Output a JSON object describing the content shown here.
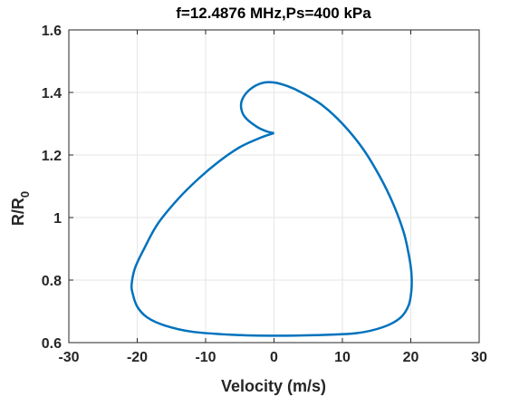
{
  "chart_data": {
    "type": "line",
    "title": "f=12.4876 MHz,Ps=400 kPa",
    "xlabel": "Velocity (m/s)",
    "ylabel_main": "R/R",
    "ylabel_sub": "0",
    "xlim": [
      -30,
      30
    ],
    "ylim": [
      0.6,
      1.6
    ],
    "xticks": [
      -30,
      -20,
      -10,
      0,
      10,
      20,
      30
    ],
    "yticks": [
      0.6,
      0.8,
      1,
      1.2,
      1.4,
      1.6
    ],
    "xtick_labels": [
      "-30",
      "-20",
      "-10",
      "0",
      "10",
      "20",
      "30"
    ],
    "ytick_labels": [
      "0.6",
      "0.8",
      "1",
      "1.2",
      "1.4",
      "1.6"
    ],
    "grid": true,
    "line_color": "#0072BD",
    "series": [
      {
        "x": [
          0,
          -2,
          -5,
          -8,
          -11,
          -14,
          -17,
          -19,
          -20.3,
          -20.8,
          -20.7,
          -20,
          -18.5,
          -16,
          -12,
          -6,
          0,
          6,
          12,
          16,
          18.5,
          19.7,
          20.1,
          20.1,
          19.8,
          19,
          17.5,
          15.5,
          13,
          10,
          7,
          4,
          2,
          0,
          -1.8,
          -3.5,
          -4.6,
          -4.8,
          -4.2,
          -2.5,
          -1,
          0
        ],
        "y": [
          1.27,
          1.255,
          1.225,
          1.18,
          1.125,
          1.06,
          0.98,
          0.9,
          0.84,
          0.79,
          0.76,
          0.715,
          0.68,
          0.655,
          0.635,
          0.625,
          0.622,
          0.624,
          0.63,
          0.65,
          0.68,
          0.72,
          0.77,
          0.82,
          0.87,
          0.95,
          1.04,
          1.13,
          1.22,
          1.3,
          1.36,
          1.4,
          1.42,
          1.432,
          1.43,
          1.41,
          1.38,
          1.35,
          1.32,
          1.29,
          1.275,
          1.27
        ]
      }
    ]
  }
}
